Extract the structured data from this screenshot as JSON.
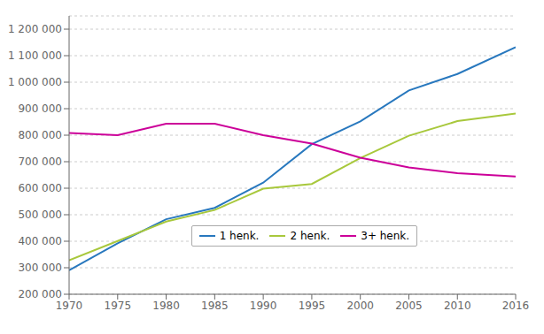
{
  "chart_data": {
    "type": "line",
    "x": [
      1970,
      1975,
      1980,
      1985,
      1990,
      1995,
      2000,
      2005,
      2010,
      2016
    ],
    "series": [
      {
        "name": "1 henk.",
        "color": "#2878be",
        "values": [
          290000,
          392000,
          483000,
          526000,
          621000,
          766000,
          852000,
          969000,
          1031000,
          1132000
        ]
      },
      {
        "name": "2 henk.",
        "color": "#a8c83c",
        "values": [
          328000,
          401000,
          474000,
          518000,
          598000,
          616000,
          714000,
          798000,
          853000,
          882000
        ]
      },
      {
        "name": "3+ henk.",
        "color": "#cc0099",
        "values": [
          808000,
          800000,
          843000,
          843000,
          800000,
          768000,
          715000,
          678000,
          657000,
          644000
        ]
      }
    ],
    "xlim": [
      1970,
      2016
    ],
    "xticks": [
      1970,
      1975,
      1980,
      1985,
      1990,
      1995,
      2000,
      2005,
      2010,
      2016
    ],
    "ylim": [
      200000,
      1250000
    ],
    "yticks": [
      {
        "value": 200000,
        "label": "200 000"
      },
      {
        "value": 300000,
        "label": "300 000"
      },
      {
        "value": 400000,
        "label": "400 000"
      },
      {
        "value": 500000,
        "label": "500 000"
      },
      {
        "value": 600000,
        "label": "600 000"
      },
      {
        "value": 700000,
        "label": "700 000"
      },
      {
        "value": 800000,
        "label": "800 000"
      },
      {
        "value": 900000,
        "label": "900 000"
      },
      {
        "value": 1000000,
        "label": "1 000 000"
      },
      {
        "value": 1100000,
        "label": "1 100 000"
      },
      {
        "value": 1200000,
        "label": "1 200 000"
      }
    ],
    "grid": true,
    "legend": "lower right"
  }
}
